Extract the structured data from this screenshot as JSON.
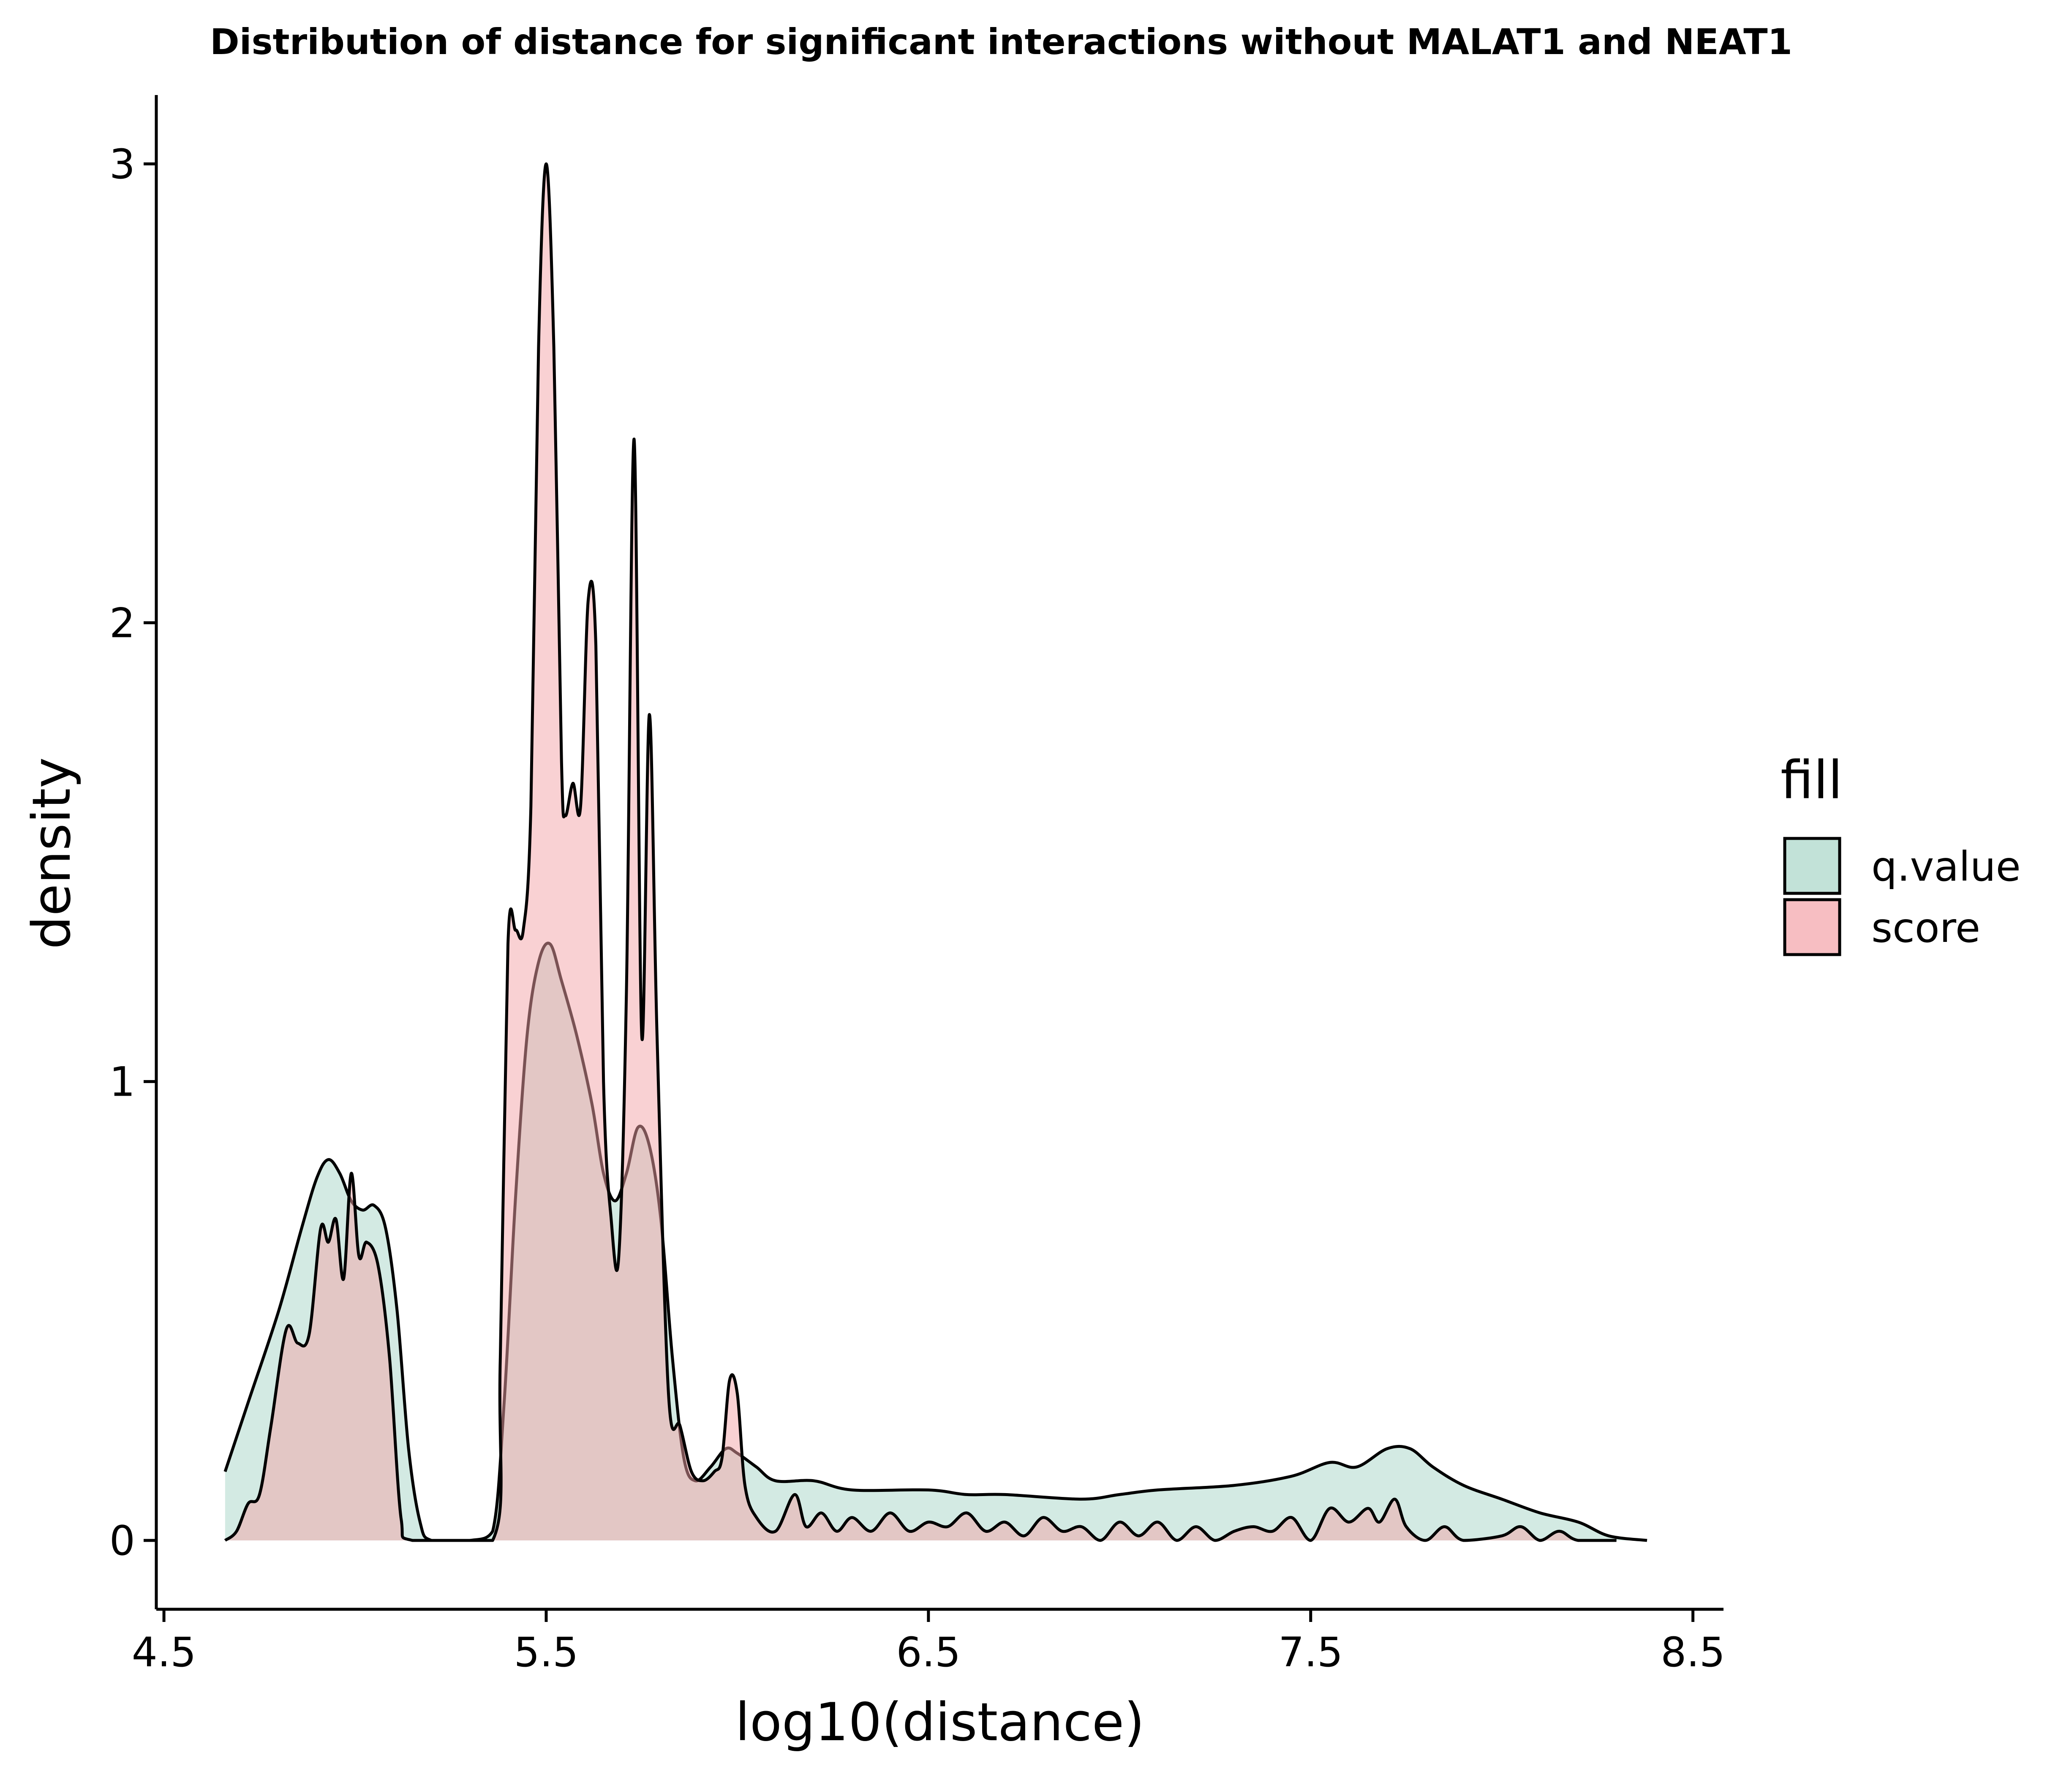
{
  "chart_data": {
    "type": "area",
    "title": "Distribution of distance for significant interactions without MALAT1 and NEAT1",
    "xlabel": "log10(distance)",
    "ylabel": "density",
    "xlim": [
      4.48,
      8.58
    ],
    "ylim": [
      -0.15,
      3.15
    ],
    "x_ticks": [
      4.5,
      5.5,
      6.5,
      7.5,
      8.5
    ],
    "x_tick_labels": [
      "4.5",
      "5.5",
      "6.5",
      "7.5",
      "8.5"
    ],
    "y_ticks": [
      0,
      1,
      2,
      3
    ],
    "y_tick_labels": [
      "0",
      "1",
      "2",
      "3"
    ],
    "grid": false,
    "legend": {
      "title": "fill",
      "position": "right"
    },
    "series": [
      {
        "name": "q.value",
        "color": "#a8d5c8",
        "points": [
          [
            4.66,
            0.15
          ],
          [
            4.72,
            0.3
          ],
          [
            4.8,
            0.5
          ],
          [
            4.86,
            0.68
          ],
          [
            4.9,
            0.79
          ],
          [
            4.93,
            0.83
          ],
          [
            4.96,
            0.8
          ],
          [
            4.99,
            0.74
          ],
          [
            5.02,
            0.72
          ],
          [
            5.05,
            0.73
          ],
          [
            5.08,
            0.68
          ],
          [
            5.11,
            0.5
          ],
          [
            5.14,
            0.2
          ],
          [
            5.17,
            0.04
          ],
          [
            5.2,
            0.0
          ],
          [
            5.3,
            0.0
          ],
          [
            5.36,
            0.02
          ],
          [
            5.39,
            0.3
          ],
          [
            5.42,
            0.75
          ],
          [
            5.45,
            1.1
          ],
          [
            5.48,
            1.26
          ],
          [
            5.51,
            1.3
          ],
          [
            5.54,
            1.22
          ],
          [
            5.58,
            1.1
          ],
          [
            5.62,
            0.95
          ],
          [
            5.65,
            0.8
          ],
          [
            5.68,
            0.74
          ],
          [
            5.71,
            0.8
          ],
          [
            5.74,
            0.9
          ],
          [
            5.77,
            0.86
          ],
          [
            5.8,
            0.7
          ],
          [
            5.83,
            0.4
          ],
          [
            5.86,
            0.18
          ],
          [
            5.89,
            0.13
          ],
          [
            5.93,
            0.16
          ],
          [
            5.97,
            0.2
          ],
          [
            6.0,
            0.19
          ],
          [
            6.05,
            0.16
          ],
          [
            6.1,
            0.13
          ],
          [
            6.2,
            0.13
          ],
          [
            6.3,
            0.11
          ],
          [
            6.5,
            0.11
          ],
          [
            6.6,
            0.1
          ],
          [
            6.7,
            0.1
          ],
          [
            6.9,
            0.09
          ],
          [
            7.0,
            0.1
          ],
          [
            7.1,
            0.11
          ],
          [
            7.3,
            0.12
          ],
          [
            7.45,
            0.14
          ],
          [
            7.55,
            0.17
          ],
          [
            7.62,
            0.16
          ],
          [
            7.7,
            0.2
          ],
          [
            7.76,
            0.2
          ],
          [
            7.82,
            0.16
          ],
          [
            7.9,
            0.12
          ],
          [
            8.0,
            0.09
          ],
          [
            8.1,
            0.06
          ],
          [
            8.2,
            0.04
          ],
          [
            8.28,
            0.01
          ],
          [
            8.38,
            0.0
          ]
        ]
      },
      {
        "name": "score",
        "color": "#f4a3a8",
        "points": [
          [
            4.66,
            0.0
          ],
          [
            4.69,
            0.02
          ],
          [
            4.72,
            0.08
          ],
          [
            4.75,
            0.1
          ],
          [
            4.78,
            0.25
          ],
          [
            4.82,
            0.46
          ],
          [
            4.85,
            0.43
          ],
          [
            4.88,
            0.45
          ],
          [
            4.91,
            0.68
          ],
          [
            4.93,
            0.65
          ],
          [
            4.95,
            0.7
          ],
          [
            4.97,
            0.57
          ],
          [
            4.99,
            0.8
          ],
          [
            5.01,
            0.62
          ],
          [
            5.03,
            0.65
          ],
          [
            5.06,
            0.6
          ],
          [
            5.09,
            0.4
          ],
          [
            5.12,
            0.05
          ],
          [
            5.15,
            0.0
          ],
          [
            5.36,
            0.0
          ],
          [
            5.38,
            0.4
          ],
          [
            5.4,
            1.3
          ],
          [
            5.42,
            1.33
          ],
          [
            5.44,
            1.33
          ],
          [
            5.46,
            1.6
          ],
          [
            5.48,
            2.6
          ],
          [
            5.5,
            3.0
          ],
          [
            5.52,
            2.6
          ],
          [
            5.54,
            1.7
          ],
          [
            5.55,
            1.58
          ],
          [
            5.57,
            1.65
          ],
          [
            5.59,
            1.6
          ],
          [
            5.61,
            2.05
          ],
          [
            5.63,
            1.95
          ],
          [
            5.65,
            1.0
          ],
          [
            5.67,
            0.7
          ],
          [
            5.69,
            0.62
          ],
          [
            5.71,
            1.2
          ],
          [
            5.73,
            2.4
          ],
          [
            5.75,
            1.1
          ],
          [
            5.77,
            1.8
          ],
          [
            5.79,
            1.1
          ],
          [
            5.82,
            0.32
          ],
          [
            5.85,
            0.25
          ],
          [
            5.88,
            0.15
          ],
          [
            5.91,
            0.13
          ],
          [
            5.94,
            0.15
          ],
          [
            5.96,
            0.18
          ],
          [
            5.98,
            0.35
          ],
          [
            6.0,
            0.32
          ],
          [
            6.02,
            0.12
          ],
          [
            6.05,
            0.05
          ],
          [
            6.1,
            0.02
          ],
          [
            6.15,
            0.1
          ],
          [
            6.18,
            0.03
          ],
          [
            6.22,
            0.06
          ],
          [
            6.26,
            0.02
          ],
          [
            6.3,
            0.05
          ],
          [
            6.35,
            0.02
          ],
          [
            6.4,
            0.06
          ],
          [
            6.45,
            0.02
          ],
          [
            6.5,
            0.04
          ],
          [
            6.55,
            0.03
          ],
          [
            6.6,
            0.06
          ],
          [
            6.65,
            0.02
          ],
          [
            6.7,
            0.04
          ],
          [
            6.75,
            0.01
          ],
          [
            6.8,
            0.05
          ],
          [
            6.85,
            0.02
          ],
          [
            6.9,
            0.03
          ],
          [
            6.95,
            0.0
          ],
          [
            7.0,
            0.04
          ],
          [
            7.05,
            0.01
          ],
          [
            7.1,
            0.04
          ],
          [
            7.15,
            0.0
          ],
          [
            7.2,
            0.03
          ],
          [
            7.25,
            0.0
          ],
          [
            7.3,
            0.02
          ],
          [
            7.35,
            0.03
          ],
          [
            7.4,
            0.02
          ],
          [
            7.45,
            0.05
          ],
          [
            7.5,
            0.0
          ],
          [
            7.55,
            0.07
          ],
          [
            7.6,
            0.04
          ],
          [
            7.65,
            0.07
          ],
          [
            7.68,
            0.04
          ],
          [
            7.72,
            0.09
          ],
          [
            7.75,
            0.03
          ],
          [
            7.8,
            0.0
          ],
          [
            7.85,
            0.03
          ],
          [
            7.9,
            0.0
          ],
          [
            8.0,
            0.01
          ],
          [
            8.05,
            0.03
          ],
          [
            8.1,
            0.0
          ],
          [
            8.15,
            0.02
          ],
          [
            8.2,
            0.0
          ],
          [
            8.3,
            0.0
          ]
        ]
      }
    ]
  }
}
